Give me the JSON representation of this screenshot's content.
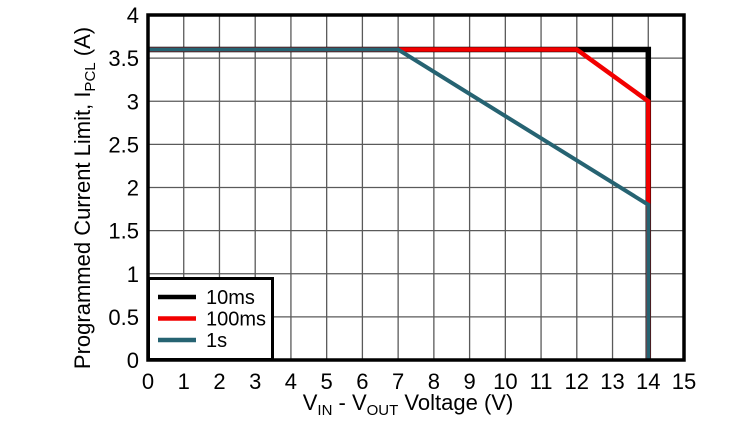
{
  "figure": {
    "background": "#ffffff",
    "text_color": "#000000"
  },
  "chart_data": {
    "type": "line",
    "title": "",
    "xlabel_parts": [
      {
        "t": "V"
      },
      {
        "t": "IN",
        "sub": true
      },
      {
        "t": " - V"
      },
      {
        "t": "OUT",
        "sub": true
      },
      {
        "t": " Voltage (V)"
      }
    ],
    "ylabel_parts": [
      {
        "t": "Programmed Current Limit, I"
      },
      {
        "t": "PCL",
        "sub": true
      },
      {
        "t": " (A)"
      }
    ],
    "xlim": [
      0,
      15
    ],
    "ylim": [
      0,
      4
    ],
    "x_ticks": [
      0,
      1,
      2,
      3,
      4,
      5,
      6,
      7,
      8,
      9,
      10,
      11,
      12,
      13,
      14,
      15
    ],
    "x_tick_labels": [
      "0",
      "1",
      "2",
      "3",
      "4",
      "5",
      "6",
      "7",
      "8",
      "9",
      "10",
      "11",
      "12",
      "13",
      "14",
      "15"
    ],
    "y_ticks": [
      0,
      0.5,
      1,
      1.5,
      2,
      2.5,
      3,
      3.5,
      4
    ],
    "y_tick_labels": [
      "0",
      "0.5",
      "1",
      "1.5",
      "2",
      "2.5",
      "3",
      "3.5",
      "4"
    ],
    "grid": true,
    "grid_color": "#5a5a5a",
    "border_color": "#000000",
    "legend": {
      "position": "bottom-left",
      "entries": [
        "10ms",
        "100ms",
        "1s"
      ]
    },
    "series": [
      {
        "name": "10ms",
        "color": "#000000",
        "points": [
          [
            0,
            3.6
          ],
          [
            14,
            3.6
          ],
          [
            14,
            0
          ]
        ]
      },
      {
        "name": "100ms",
        "color": "#f20000",
        "points": [
          [
            0,
            3.6
          ],
          [
            12,
            3.6
          ],
          [
            14,
            3.0
          ],
          [
            14,
            0
          ]
        ]
      },
      {
        "name": "1s",
        "color": "#266372",
        "points": [
          [
            0,
            3.6
          ],
          [
            7,
            3.6
          ],
          [
            14,
            1.8
          ],
          [
            14,
            0
          ]
        ]
      }
    ]
  }
}
